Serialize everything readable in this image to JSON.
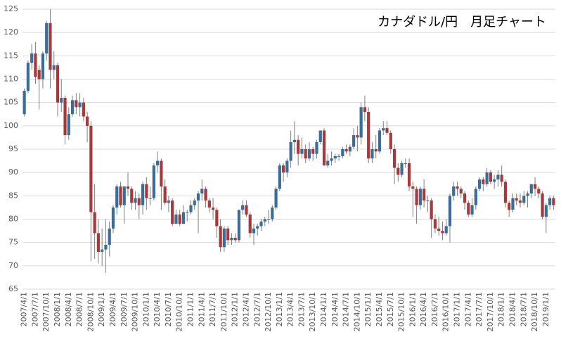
{
  "chart_data": {
    "type": "candlestick",
    "title": "カナダドル/円　月足チャート",
    "up_color": "#3a6d99",
    "down_color": "#a63a3a",
    "grid": true,
    "ylim": [
      65,
      125
    ],
    "yticks": [
      65,
      70,
      75,
      80,
      85,
      90,
      95,
      100,
      105,
      110,
      115,
      120,
      125
    ],
    "categories": [
      "2007/4/1",
      null,
      null,
      "2007/7/1",
      null,
      null,
      "2007/10/1",
      null,
      null,
      "2008/1/1",
      null,
      null,
      "2008/4/1",
      null,
      null,
      "2008/7/1",
      null,
      null,
      "2008/10/1",
      null,
      null,
      "2009/1/1",
      null,
      null,
      "2009/4/1",
      null,
      null,
      "2009/7/1",
      null,
      null,
      "2009/10/1",
      null,
      null,
      "2010/1/1",
      null,
      null,
      "2010/4/1",
      null,
      null,
      "2010/7/1",
      null,
      null,
      "2010/10/1",
      null,
      null,
      "2011/1/1",
      null,
      null,
      "2011/4/1",
      null,
      null,
      "2011/7/1",
      null,
      null,
      "2011/10/1",
      null,
      null,
      "2012/1/1",
      null,
      null,
      "2012/4/1",
      null,
      null,
      "2012/7/1",
      null,
      null,
      "2012/10/1",
      null,
      null,
      "2013/1/1",
      null,
      null,
      "2013/4/1",
      null,
      null,
      "2013/7/1",
      null,
      null,
      "2013/10/1",
      null,
      null,
      "2014/1/1",
      null,
      null,
      "2014/4/1",
      null,
      null,
      "2014/7/1",
      null,
      null,
      "2014/10/1",
      null,
      null,
      "2015/1/1",
      null,
      null,
      "2015/4/1",
      null,
      null,
      "2015/7/1",
      null,
      null,
      "2015/10/1",
      null,
      null,
      "2016/1/1",
      null,
      null,
      "2016/4/1",
      null,
      null,
      "2016/7/1",
      null,
      null,
      "2016/10/1",
      null,
      null,
      "2017/1/1",
      null,
      null,
      "2017/4/1",
      null,
      null,
      "2017/7/1",
      null,
      null,
      "2017/10/1",
      null,
      null,
      "2018/1/1",
      null,
      null,
      "2018/4/1",
      null,
      null,
      "2018/7/1",
      null,
      null,
      "2018/10/1",
      null,
      null,
      "2019/1/1",
      null,
      null
    ],
    "open": [
      102.5,
      107.5,
      113.5,
      115.5,
      112,
      110,
      115.5,
      122,
      112,
      113,
      105,
      106,
      98,
      102.5,
      105.5,
      104,
      105,
      102,
      100,
      81.5,
      77,
      73,
      73.5,
      74.5,
      78,
      82.5,
      87,
      83,
      87,
      86.5,
      83.5,
      84.5,
      83,
      87.5,
      84.5,
      84.5,
      91.5,
      92.5,
      87,
      83.5,
      84,
      79,
      81,
      79,
      81.5,
      81.5,
      83,
      84,
      85.5,
      86.5,
      84,
      82.5,
      82,
      78.5,
      74,
      78,
      75.5,
      76,
      75.5,
      82,
      83,
      81,
      77,
      78,
      78.5,
      79.5,
      80,
      80,
      82.5,
      86.5,
      91.5,
      90,
      92.5,
      96.5,
      97,
      94,
      95,
      93,
      95,
      94,
      96.5,
      99,
      91.5,
      92.5,
      93,
      93.5,
      93.5,
      95,
      94.5,
      95.5,
      98,
      97.5,
      104,
      103,
      93,
      95,
      94.5,
      99,
      99.5,
      98.5,
      95,
      91,
      89.5,
      92,
      92,
      87,
      86.5,
      83,
      86.5,
      84,
      84,
      80,
      78,
      77.5,
      77,
      78.5,
      85,
      87,
      86.5,
      85.5,
      83.5,
      81,
      83,
      86.5,
      88.5,
      87.5,
      90,
      88,
      88.5,
      89.5,
      88,
      83.5,
      82,
      84.5,
      84,
      83.5,
      85,
      85.5,
      87.5,
      86.5,
      85.5,
      80.5,
      83,
      84.5
    ],
    "high": [
      108,
      114,
      117.5,
      118,
      113,
      116,
      122.5,
      125,
      116,
      113.5,
      110,
      106.5,
      104,
      106.5,
      107,
      107,
      106,
      103,
      101,
      87.5,
      80,
      78,
      80,
      79.5,
      83,
      87.5,
      88,
      87,
      90,
      87,
      86,
      85.5,
      88,
      89,
      87,
      92,
      94.5,
      93,
      88.5,
      85,
      84.5,
      82,
      82,
      83,
      82,
      84,
      84.5,
      86,
      88.5,
      87,
      84.5,
      84.5,
      82.5,
      80,
      78.5,
      78.5,
      77,
      77,
      82,
      84,
      84,
      81.5,
      79,
      79,
      80,
      80.5,
      82,
      83,
      87,
      92,
      92,
      93,
      99,
      101,
      98,
      97.5,
      96,
      96.5,
      95.5,
      97,
      99,
      99.5,
      94,
      94.5,
      94,
      94,
      95.5,
      96,
      96,
      99.5,
      100,
      105,
      106.5,
      104,
      96.5,
      98,
      99.5,
      101,
      101,
      99,
      96,
      92,
      92.5,
      93,
      93,
      88,
      87,
      87,
      88.5,
      85,
      84.5,
      81,
      80.5,
      79.5,
      80,
      85.5,
      88,
      88,
      87,
      86,
      84,
      84.5,
      87,
      89,
      89,
      91,
      90.5,
      89.5,
      90.5,
      91.5,
      88.5,
      84,
      85.5,
      85.5,
      85.5,
      86,
      86,
      87.5,
      89,
      87,
      86,
      83.5,
      85,
      85
    ],
    "low": [
      102,
      107,
      112,
      109,
      103.5,
      108,
      114,
      108,
      110,
      102,
      103,
      96,
      97,
      102,
      102.5,
      102,
      101,
      96.5,
      71,
      71.5,
      70.5,
      70,
      68.5,
      72,
      77,
      81,
      82.5,
      79,
      85,
      82,
      82,
      80,
      81,
      82,
      83,
      84,
      90,
      82,
      83,
      81.5,
      78.5,
      79,
      78.5,
      79,
      79.5,
      81,
      82,
      77,
      84,
      82.5,
      81.5,
      80,
      76,
      73,
      73,
      74.5,
      74.5,
      75,
      75,
      81,
      80.5,
      76,
      74.5,
      76.5,
      77.5,
      78.5,
      79,
      79.5,
      82,
      86,
      88,
      89,
      91,
      94,
      91.5,
      93,
      92,
      92.5,
      92.5,
      93,
      96,
      91.5,
      91,
      91.5,
      92,
      92.5,
      93,
      94,
      93.5,
      95,
      94.5,
      96,
      101,
      92,
      92,
      93,
      94,
      98,
      98,
      94,
      87.5,
      88,
      89,
      91,
      86,
      80.5,
      79,
      82,
      82.5,
      81.5,
      76,
      77,
      76.5,
      75.5,
      76.5,
      75,
      84,
      85,
      84.5,
      82,
      80.5,
      80.5,
      82,
      86,
      86,
      87,
      87.5,
      86.5,
      87,
      87,
      82.5,
      80.5,
      81.5,
      83,
      82.5,
      83,
      82.5,
      84.5,
      85,
      84.5,
      80,
      77,
      82,
      82
    ],
    "close": [
      107.5,
      113.5,
      115.5,
      110.5,
      110,
      115.5,
      122,
      112,
      113,
      105,
      106,
      98,
      102.5,
      105.5,
      104,
      105,
      102,
      100,
      81.5,
      77,
      73,
      73.5,
      74.5,
      78,
      82.5,
      87,
      83,
      87,
      86.5,
      83.5,
      84.5,
      83,
      87.5,
      84.5,
      84.5,
      91.5,
      92.5,
      87,
      83.5,
      84,
      79,
      81,
      79,
      81.5,
      81.5,
      83,
      84,
      85.5,
      86.5,
      84,
      82.5,
      82,
      78.5,
      74,
      78,
      75.5,
      76,
      75.5,
      82,
      83,
      81,
      77,
      78,
      78.5,
      79.5,
      80,
      80,
      82.5,
      86.5,
      91.5,
      90,
      92.5,
      96.5,
      97,
      94,
      95,
      93,
      95,
      94,
      96.5,
      99,
      91.5,
      92.5,
      93,
      93.5,
      93.5,
      95,
      94.5,
      95.5,
      98,
      97.5,
      104,
      103,
      93,
      95,
      94.5,
      99,
      99.5,
      98.5,
      95,
      91,
      89.5,
      92,
      92,
      87,
      86.5,
      83,
      86.5,
      84,
      84,
      80,
      78,
      77.5,
      77,
      78.5,
      85,
      87,
      86.5,
      85.5,
      83.5,
      81,
      83,
      86.5,
      88.5,
      87.5,
      90,
      88,
      88.5,
      89.5,
      88,
      83.5,
      82,
      84.5,
      84,
      83.5,
      85,
      85.5,
      87.5,
      86.5,
      85.5,
      80.5,
      83,
      84.5,
      83
    ]
  }
}
